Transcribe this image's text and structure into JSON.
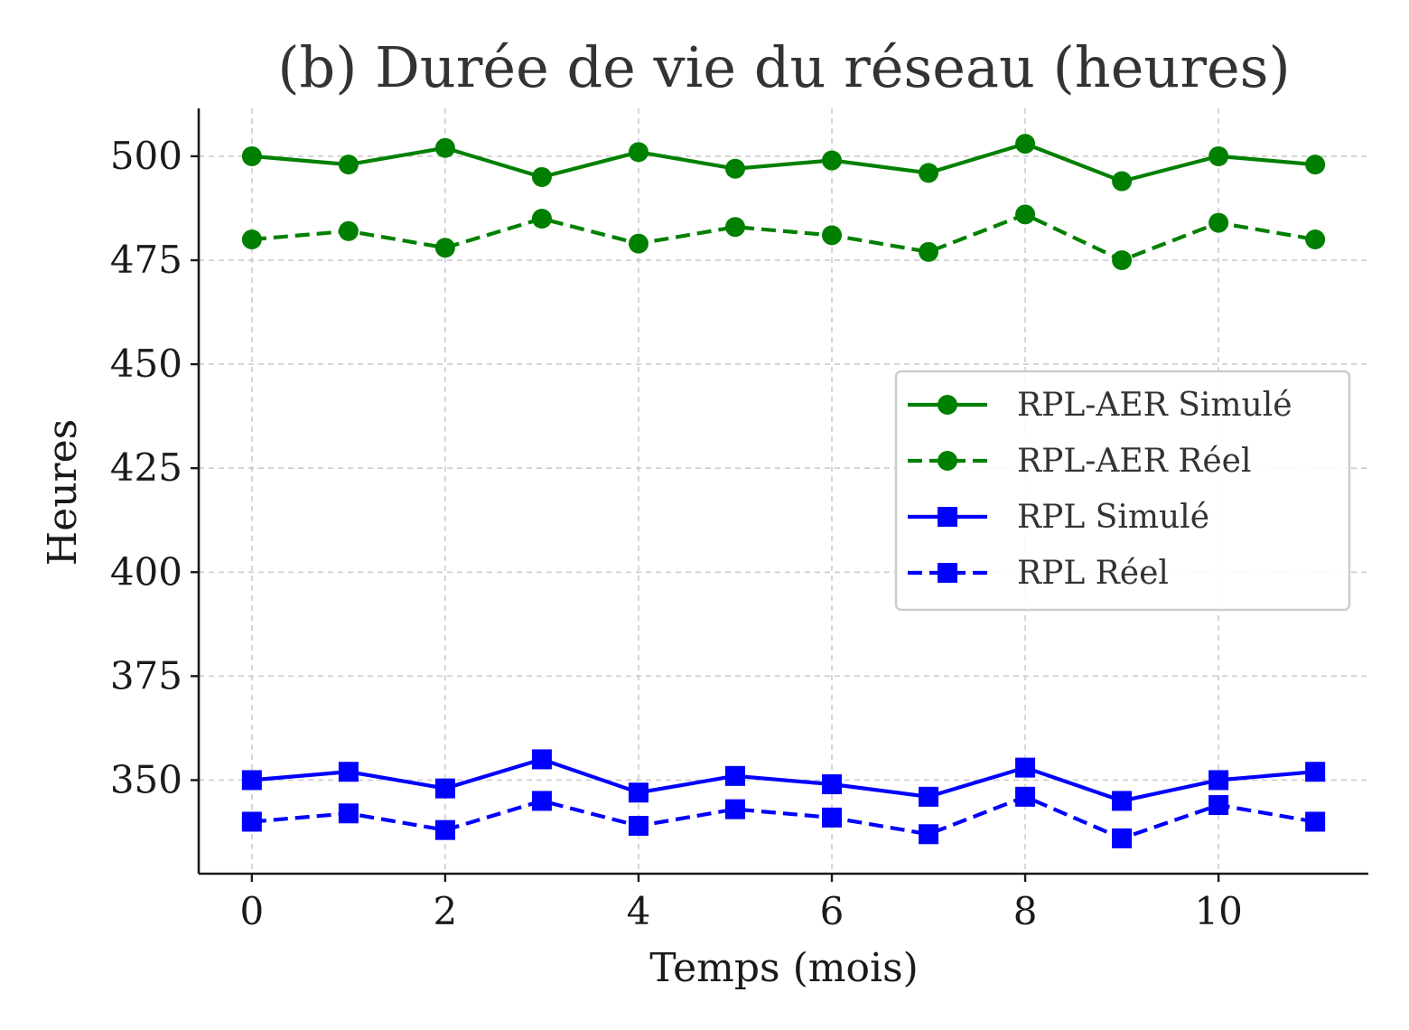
{
  "chart_data": {
    "type": "line",
    "title": "(b) Durée de vie du réseau (heures)",
    "xlabel": "Temps (mois)",
    "ylabel": "Heures",
    "x": [
      0,
      1,
      2,
      3,
      4,
      5,
      6,
      7,
      8,
      9,
      10,
      11
    ],
    "xlim": [
      -0.55,
      11.55
    ],
    "ylim": [
      327.5,
      511.5
    ],
    "xticks": [
      0,
      2,
      4,
      6,
      8,
      10
    ],
    "yticks": [
      350,
      375,
      400,
      425,
      450,
      475,
      500
    ],
    "grid": true,
    "legend_position": "center-right",
    "series": [
      {
        "name": "RPL-AER Simulé",
        "color": "#008000",
        "linestyle": "solid",
        "marker": "circle",
        "values": [
          500,
          498,
          502,
          495,
          501,
          497,
          499,
          496,
          503,
          494,
          500,
          498
        ]
      },
      {
        "name": "RPL-AER Réel",
        "color": "#008000",
        "linestyle": "dashed",
        "marker": "circle",
        "values": [
          480,
          482,
          478,
          485,
          479,
          483,
          481,
          477,
          486,
          475,
          484,
          480
        ]
      },
      {
        "name": "RPL Simulé",
        "color": "#0000ff",
        "linestyle": "solid",
        "marker": "square",
        "values": [
          350,
          352,
          348,
          355,
          347,
          351,
          349,
          346,
          353,
          345,
          350,
          352
        ]
      },
      {
        "name": "RPL Réel",
        "color": "#0000ff",
        "linestyle": "dashed",
        "marker": "square",
        "values": [
          340,
          342,
          338,
          345,
          339,
          343,
          341,
          337,
          346,
          336,
          344,
          340
        ]
      }
    ]
  }
}
